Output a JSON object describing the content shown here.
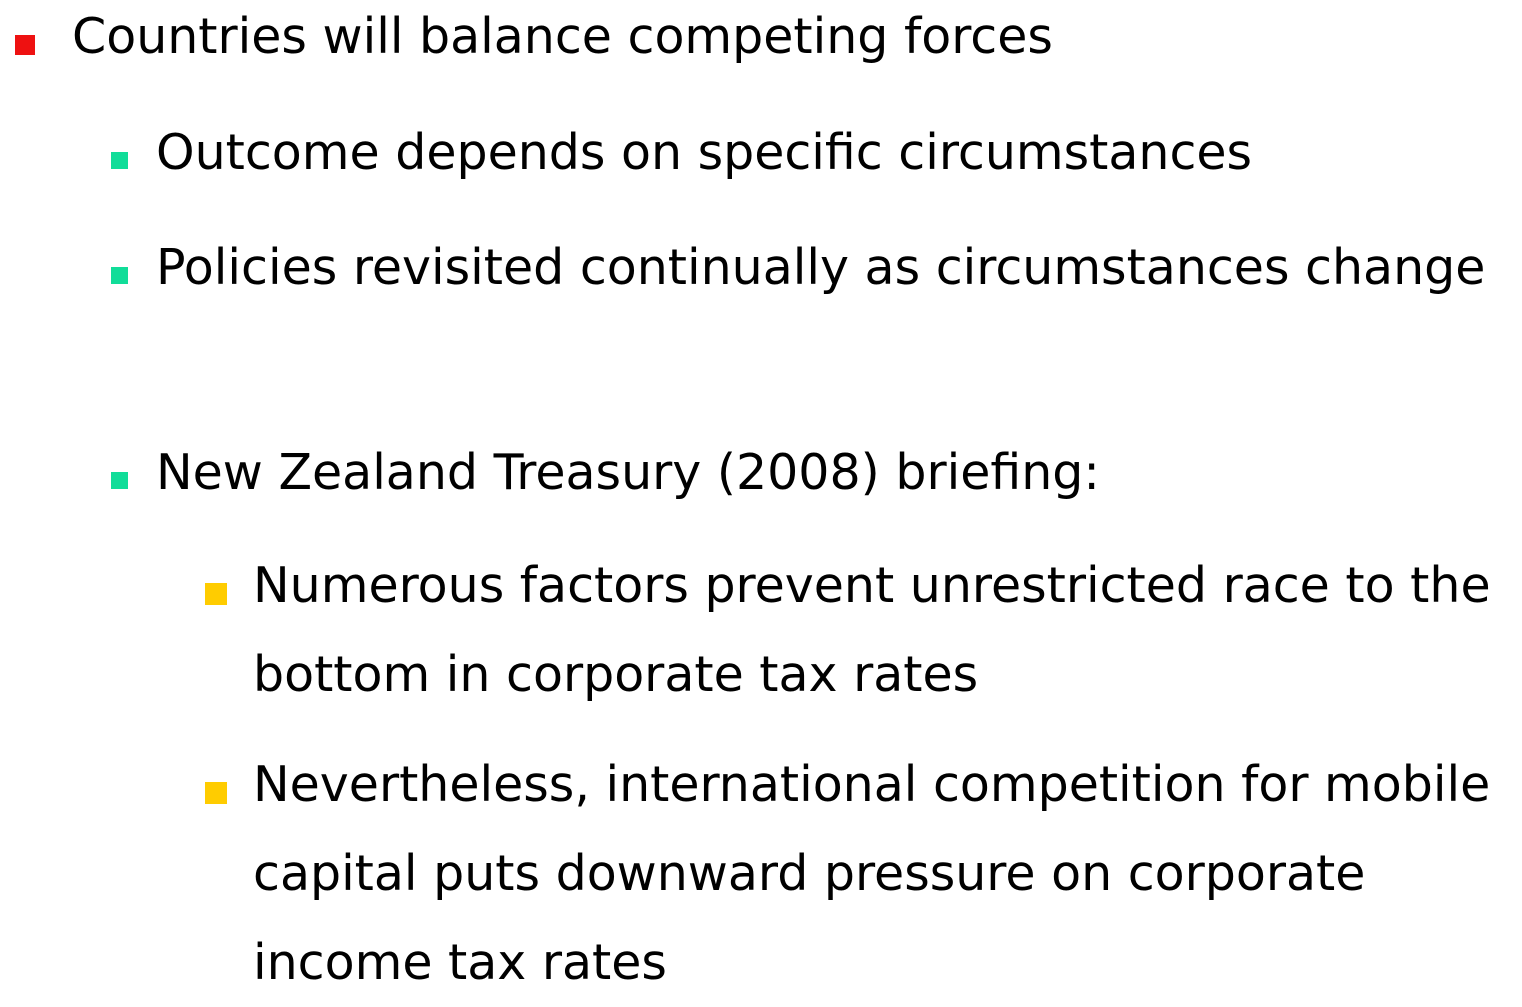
{
  "bullets": [
    {
      "level": 1,
      "text": "Countries will balance competing forces"
    },
    {
      "level": 2,
      "text": "Outcome depends on specific circumstances"
    },
    {
      "level": 2,
      "text": "Policies revisited continually as circumstances change"
    },
    {
      "level": 2,
      "text": "New Zealand Treasury (2008) briefing:"
    },
    {
      "level": 3,
      "text": "Numerous factors prevent unrestricted race to the bottom in corporate tax rates"
    },
    {
      "level": 3,
      "text": "Nevertheless, international competition for mobile capital puts downward pressure on corporate income tax rates"
    }
  ]
}
